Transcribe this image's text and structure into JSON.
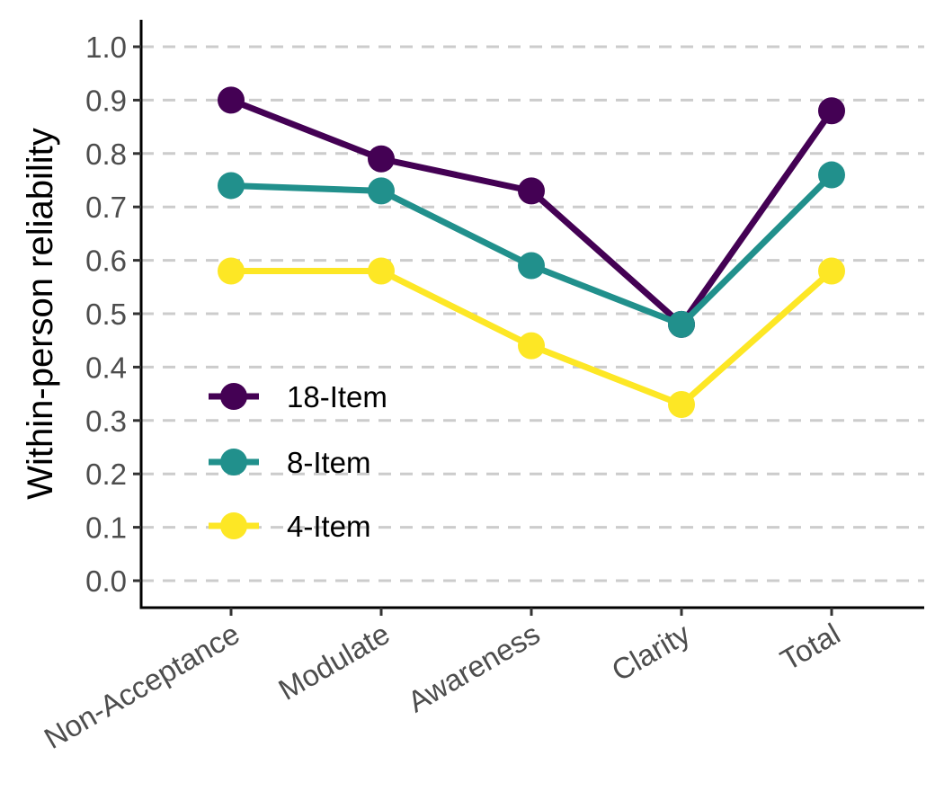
{
  "chart_data": {
    "type": "line",
    "title": "",
    "xlabel": "",
    "ylabel": "Within-person reliability",
    "categories": [
      "Non-Acceptance",
      "Modulate",
      "Awareness",
      "Clarity",
      "Total"
    ],
    "ylim": [
      0.0,
      1.0
    ],
    "yticks": [
      "0.0",
      "0.1",
      "0.2",
      "0.3",
      "0.4",
      "0.5",
      "0.6",
      "0.7",
      "0.8",
      "0.9",
      "1.0"
    ],
    "grid": "horizontal dashed",
    "legend_position": "bottom-left inside",
    "series": [
      {
        "name": "18-Item",
        "color": "#440154",
        "values": [
          0.9,
          0.79,
          0.73,
          0.48,
          0.88
        ]
      },
      {
        "name": "8-Item",
        "color": "#21908C",
        "values": [
          0.74,
          0.73,
          0.59,
          0.48,
          0.76
        ]
      },
      {
        "name": "4-Item",
        "color": "#FDE725",
        "values": [
          0.58,
          0.58,
          0.44,
          0.33,
          0.58
        ]
      }
    ]
  }
}
